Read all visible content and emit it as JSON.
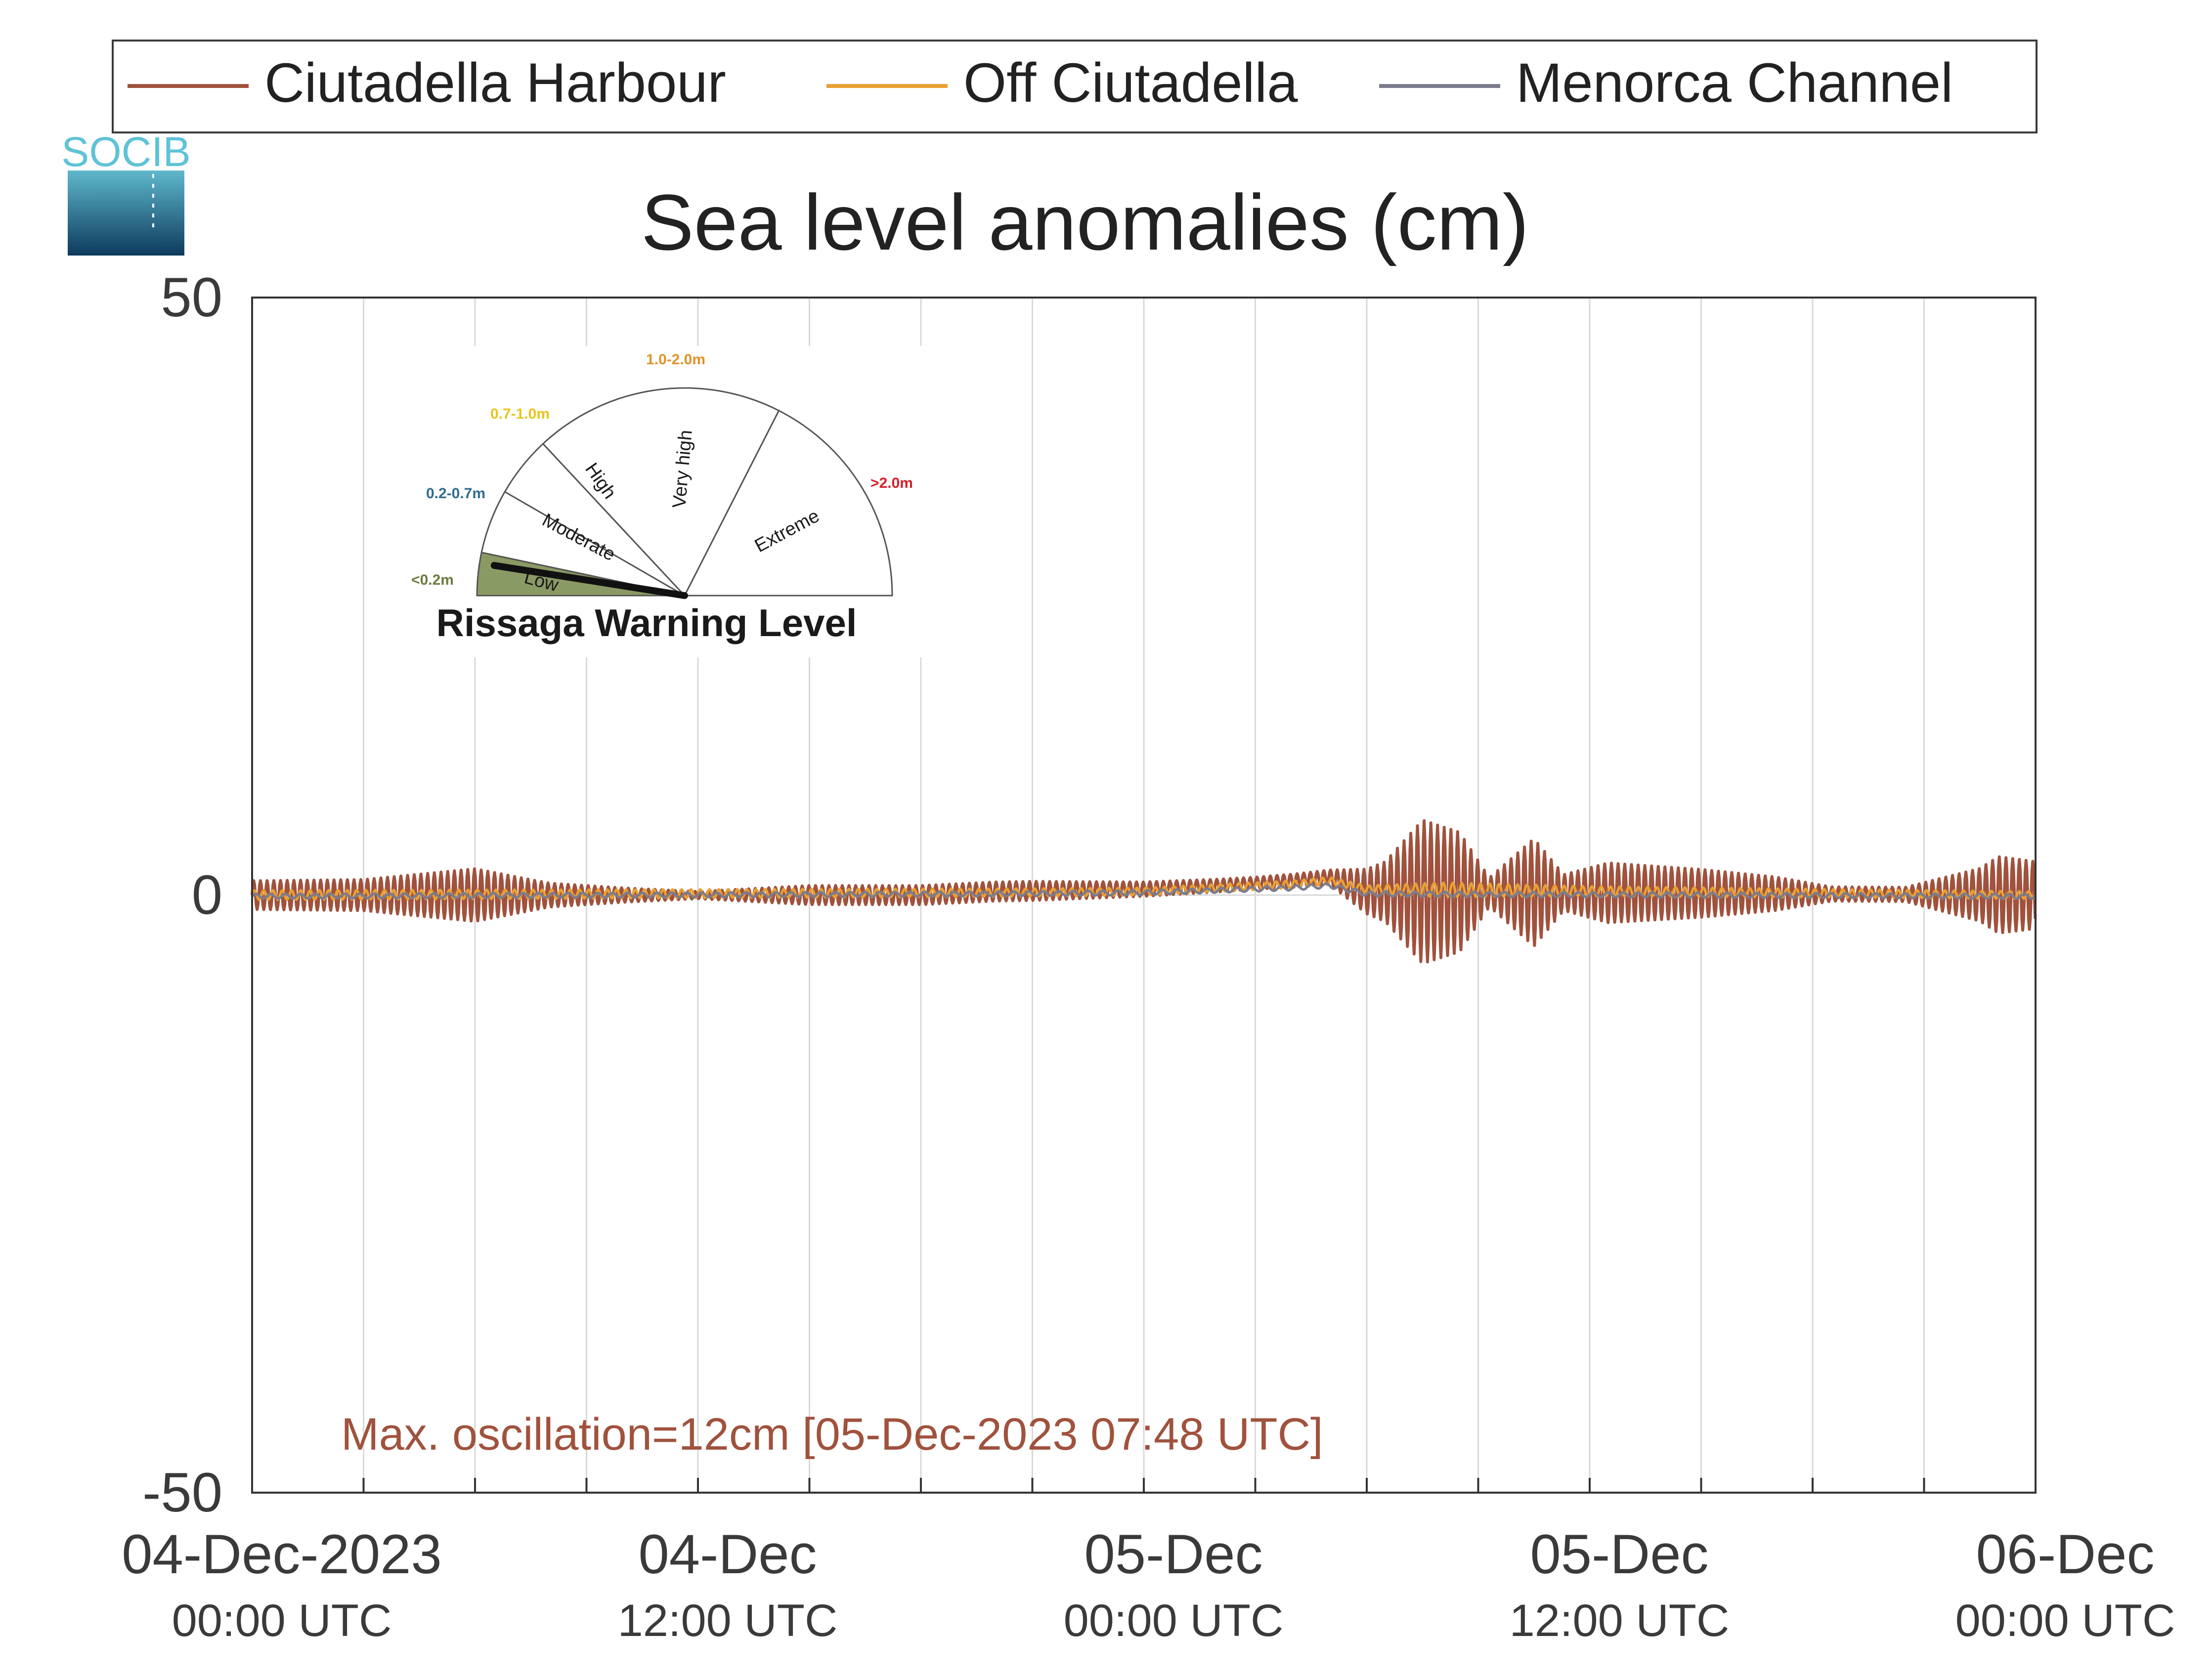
{
  "chart_data": {
    "type": "line",
    "title": "Sea level anomalies (cm)",
    "ylim": [
      -50,
      50
    ],
    "y_ticks": [
      {
        "value": 50,
        "label": "50"
      },
      {
        "value": 0,
        "label": "0"
      },
      {
        "value": -50,
        "label": "-50"
      }
    ],
    "x_range_hours": [
      0,
      48
    ],
    "grid": true,
    "x_ticks": [
      {
        "hour": 0,
        "line1": "04-Dec-2023",
        "line2": "00:00 UTC"
      },
      {
        "hour": 12,
        "line1": "04-Dec",
        "line2": "12:00 UTC"
      },
      {
        "hour": 24,
        "line1": "05-Dec",
        "line2": "00:00 UTC"
      },
      {
        "hour": 36,
        "line1": "05-Dec",
        "line2": "12:00 UTC"
      },
      {
        "hour": 48,
        "line1": "06-Dec",
        "line2": "00:00 UTC"
      }
    ],
    "legend_position": "top",
    "series": [
      {
        "name": "Ciutadella Harbour",
        "color": "#a0523d",
        "oscillation_period_hours": 0.18,
        "baseline_points": [
          [
            0,
            0
          ],
          [
            6,
            0
          ],
          [
            12,
            0
          ],
          [
            18,
            0
          ],
          [
            20,
            0.3
          ],
          [
            24,
            0.5
          ],
          [
            26,
            0.8
          ],
          [
            28,
            1.2
          ],
          [
            29,
            1.5
          ],
          [
            30,
            0.3
          ],
          [
            48,
            0
          ]
        ],
        "amplitude_points": [
          [
            0,
            1.2
          ],
          [
            3,
            1.3
          ],
          [
            6,
            2.2
          ],
          [
            8,
            1.0
          ],
          [
            10,
            0.6
          ],
          [
            12,
            0.3
          ],
          [
            15,
            0.8
          ],
          [
            18,
            0.8
          ],
          [
            21,
            0.8
          ],
          [
            24,
            0.6
          ],
          [
            27,
            0.5
          ],
          [
            29,
            0.6
          ],
          [
            30.5,
            2.5
          ],
          [
            31.5,
            6.0
          ],
          [
            32.5,
            5.0
          ],
          [
            33.3,
            1.2
          ],
          [
            34.5,
            4.5
          ],
          [
            35.3,
            1.5
          ],
          [
            36.5,
            2.5
          ],
          [
            39,
            2.0
          ],
          [
            41,
            1.4
          ],
          [
            42.5,
            0.6
          ],
          [
            44.5,
            0.6
          ],
          [
            46.5,
            2.2
          ],
          [
            47,
            3.2
          ],
          [
            48,
            2.8
          ]
        ]
      },
      {
        "name": "Off Ciutadella",
        "color": "#e8a033",
        "oscillation_period_hours": 0.25,
        "baseline_points": [
          [
            0,
            0
          ],
          [
            20,
            0.2
          ],
          [
            24,
            0.3
          ],
          [
            26,
            0.6
          ],
          [
            28,
            0.9
          ],
          [
            29,
            1.2
          ],
          [
            30,
            0.5
          ],
          [
            48,
            0
          ]
        ],
        "amplitude_points": [
          [
            0,
            0.4
          ],
          [
            30,
            0.3
          ],
          [
            32,
            0.6
          ],
          [
            36,
            0.4
          ],
          [
            48,
            0.3
          ]
        ]
      },
      {
        "name": "Menorca Channel",
        "color": "#7b7c8e",
        "oscillation_period_hours": 0.4,
        "baseline_points": [
          [
            0,
            -0.1
          ],
          [
            20,
            0.1
          ],
          [
            24,
            0.2
          ],
          [
            26,
            0.4
          ],
          [
            28,
            0.6
          ],
          [
            29,
            0.8
          ],
          [
            30,
            0.1
          ],
          [
            48,
            -0.1
          ]
        ],
        "amplitude_points": [
          [
            0,
            0.2
          ],
          [
            48,
            0.2
          ]
        ]
      }
    ],
    "annotation": "Max. oscillation=12cm [05-Dec-2023 07:48 UTC]"
  },
  "logo": {
    "text": "SOCIB"
  },
  "gauge": {
    "title": "Rissaga Warning Level",
    "needle_level": "Low",
    "sectors": [
      {
        "name": "Low",
        "range": "<0.2m",
        "color": "#6b7c41"
      },
      {
        "name": "Moderate",
        "range": "0.2-0.7m",
        "color": "#2e6e8e"
      },
      {
        "name": "High",
        "range": "0.7-1.0m",
        "color": "#e8c51c"
      },
      {
        "name": "Very high",
        "range": "1.0-2.0m",
        "color": "#e3922a"
      },
      {
        "name": "Extreme",
        "range": ">2.0m",
        "color": "#d51f2a"
      }
    ]
  }
}
